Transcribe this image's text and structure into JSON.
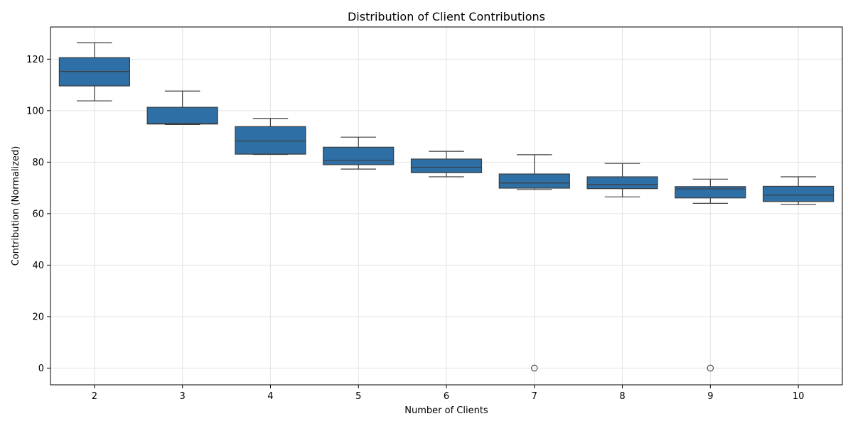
{
  "chart_data": {
    "type": "box",
    "title": "Distribution of Client Contributions",
    "xlabel": "Number of Clients",
    "ylabel": "Contribution (Normalized)",
    "ylim": [
      -6.5,
      132.5
    ],
    "yticks": [
      0,
      20,
      40,
      60,
      80,
      100,
      120
    ],
    "grid": true,
    "box_color": "#2e6fa5",
    "categories": [
      "2",
      "3",
      "4",
      "5",
      "6",
      "7",
      "8",
      "9",
      "10"
    ],
    "boxes": [
      {
        "category": "2",
        "whisker_low": 103.8,
        "q1": 109.6,
        "median": 115.2,
        "q3": 120.6,
        "whisker_high": 126.4,
        "outliers": []
      },
      {
        "category": "3",
        "whisker_low": 94.6,
        "q1": 94.8,
        "median": 95.0,
        "q3": 101.3,
        "whisker_high": 107.6,
        "outliers": []
      },
      {
        "category": "4",
        "whisker_low": 83.0,
        "q1": 83.1,
        "median": 88.2,
        "q3": 93.8,
        "whisker_high": 97.0,
        "outliers": []
      },
      {
        "category": "5",
        "whisker_low": 77.3,
        "q1": 79.0,
        "median": 80.7,
        "q3": 85.8,
        "whisker_high": 89.7,
        "outliers": []
      },
      {
        "category": "6",
        "whisker_low": 74.3,
        "q1": 75.9,
        "median": 78.0,
        "q3": 81.2,
        "whisker_high": 84.2,
        "outliers": []
      },
      {
        "category": "7",
        "whisker_low": 69.4,
        "q1": 69.9,
        "median": 71.9,
        "q3": 75.4,
        "whisker_high": 82.9,
        "outliers": [
          0
        ]
      },
      {
        "category": "8",
        "whisker_low": 66.5,
        "q1": 69.7,
        "median": 71.3,
        "q3": 74.3,
        "whisker_high": 79.5,
        "outliers": []
      },
      {
        "category": "9",
        "whisker_low": 64.0,
        "q1": 66.1,
        "median": 69.6,
        "q3": 70.5,
        "whisker_high": 73.4,
        "outliers": [
          0
        ]
      },
      {
        "category": "10",
        "whisker_low": 63.5,
        "q1": 64.7,
        "median": 67.2,
        "q3": 70.6,
        "whisker_high": 74.3,
        "outliers": []
      }
    ]
  }
}
